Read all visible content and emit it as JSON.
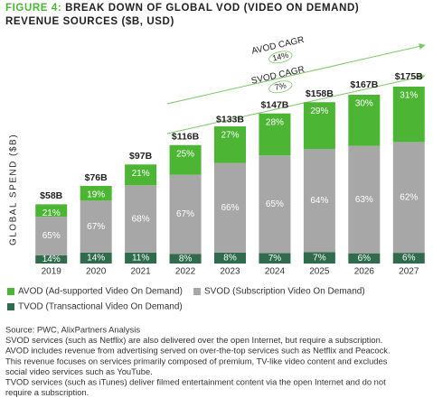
{
  "chart_data": {
    "type": "bar",
    "title_prefix": "FIGURE 4:",
    "title": [
      "BREAK DOWN OF GLOBAL VOD (VIDEO ON DEMAND)",
      "REVENUE SOURCES ($B, USD)"
    ],
    "y_label": "GLOBAL SPEND ($B)",
    "categories": [
      "2019",
      "2020",
      "2021",
      "2022",
      "2023",
      "2024",
      "2025",
      "2026",
      "2027"
    ],
    "totals": {
      "values": [
        58,
        76,
        97,
        116,
        133,
        147,
        158,
        167,
        175
      ],
      "value_labels": [
        "$58B",
        "$76B",
        "$97B",
        "$116B",
        "$133B",
        "$147B",
        "$158B",
        "$167B",
        "$175B"
      ]
    },
    "series": [
      {
        "name": "AVOD (Ad-supported Video On Demand)",
        "color": "#4db534",
        "values": [
          21,
          19,
          21,
          25,
          27,
          28,
          29,
          30,
          31
        ],
        "value_labels": [
          "21%",
          "19%",
          "21%",
          "25%",
          "27%",
          "28%",
          "29%",
          "30%",
          "31%"
        ]
      },
      {
        "name": "SVOD (Subscription Video On Demand)",
        "color": "#a7a7a7",
        "values": [
          65,
          67,
          68,
          67,
          66,
          65,
          64,
          63,
          62
        ],
        "value_labels": [
          "65%",
          "67%",
          "68%",
          "67%",
          "66%",
          "65%",
          "64%",
          "63%",
          "62%"
        ]
      },
      {
        "name": "TVOD (Transactional Video On Demand)",
        "color": "#2f6b4c",
        "values": [
          14,
          14,
          11,
          8,
          8,
          7,
          7,
          6,
          6
        ],
        "value_labels": [
          "14%",
          "14%",
          "11%",
          "8%",
          "8%",
          "7%",
          "7%",
          "6%",
          "6%"
        ]
      }
    ],
    "annotations": [
      {
        "label": "AVOD CAGR",
        "value": 14,
        "value_label": "14%"
      },
      {
        "label": "SVOD CAGR",
        "value": 7,
        "value_label": "7%"
      }
    ],
    "notes": [
      "Source: PWC, AlixPartners Analysis",
      "SVOD services (such as Netflix) are also delivered over the open Internet, but require a subscription.",
      "AVOD includes revenue from advertising served on over-the-top services such as Netflix and Peacock.",
      "This revenue focuses on services primarily composed of premium, TV-like video content and excludes",
      "social video services such as YouTube.",
      "TVOD services (such as iTunes) deliver filmed entertainment content via the open Internet and do not",
      "require a subscription."
    ]
  }
}
